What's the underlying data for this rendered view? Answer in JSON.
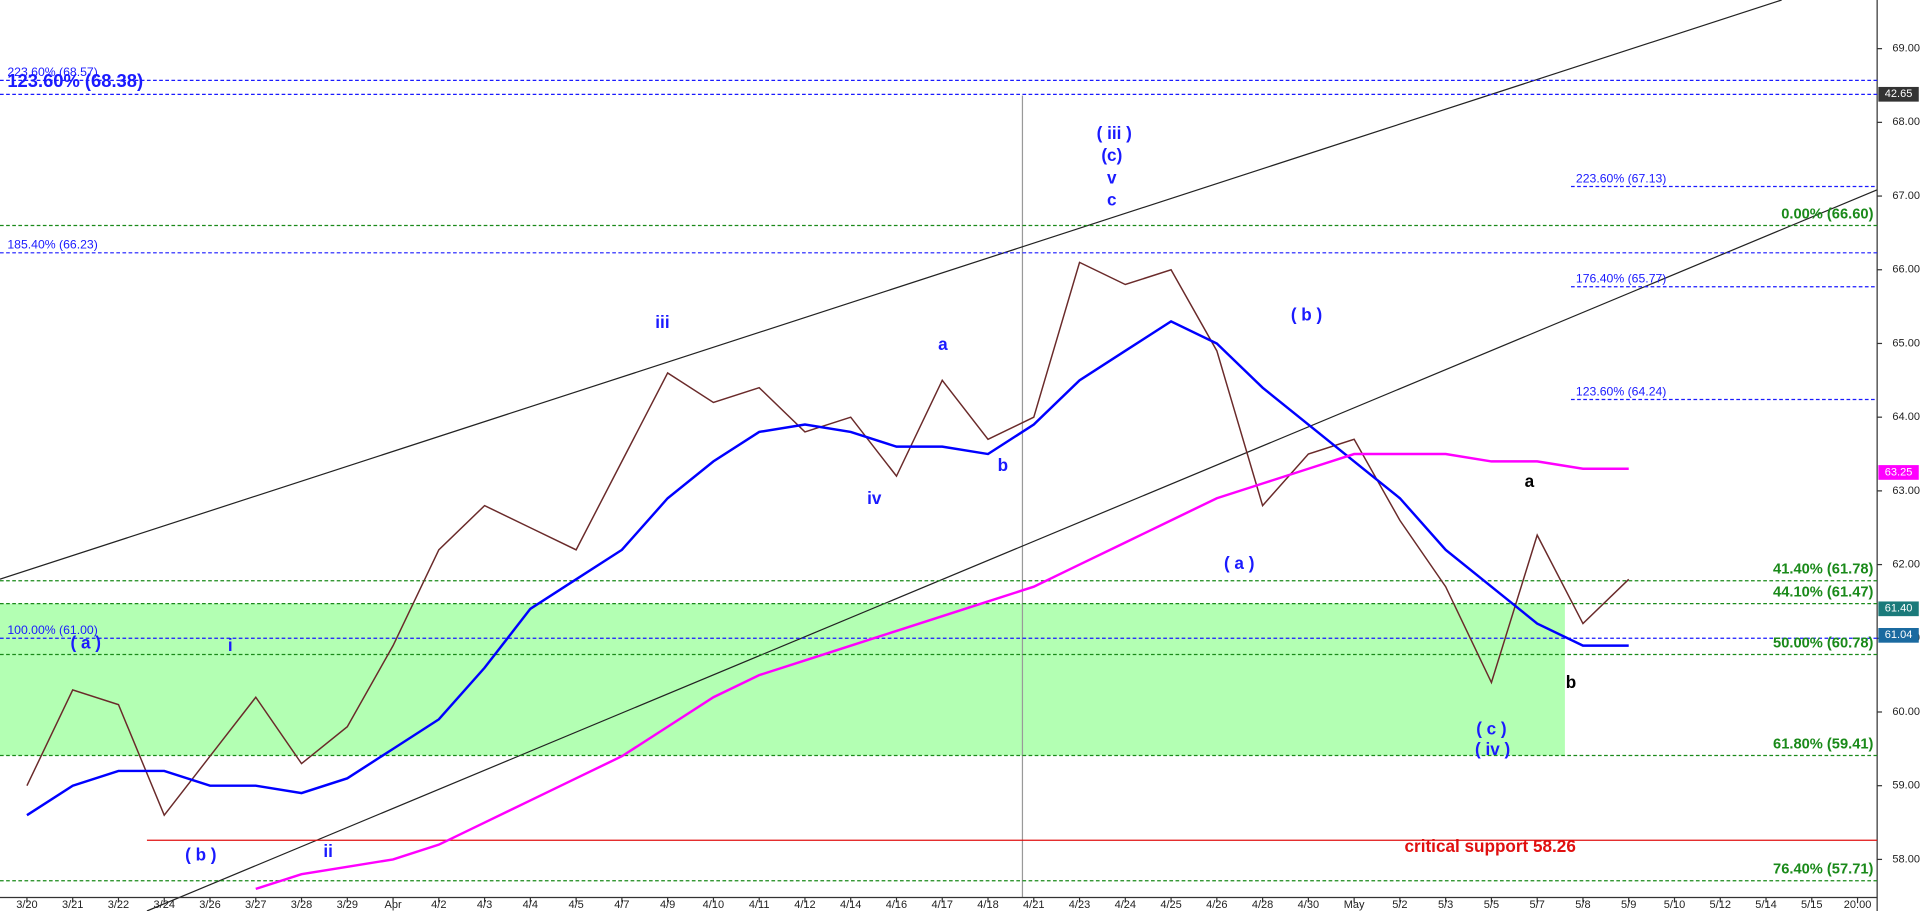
{
  "chart_data": {
    "type": "line",
    "categories": [
      "3/20",
      "3/21",
      "3/22",
      "3/24",
      "3/26",
      "3/27",
      "3/28",
      "3/29",
      "Apr",
      "4/2",
      "4/3",
      "4/4",
      "4/5",
      "4/7",
      "4/9",
      "4/10",
      "4/11",
      "4/12",
      "4/14",
      "4/16",
      "4/17",
      "4/18",
      "4/21",
      "4/23",
      "4/24",
      "4/25",
      "4/26",
      "4/28",
      "4/30",
      "May",
      "5/2",
      "5/3",
      "5/5",
      "5/7",
      "5/8",
      "5/9",
      "5/10",
      "5/12",
      "5/14",
      "5/15",
      "20:00"
    ],
    "series": [
      {
        "color": "#6a2a2a",
        "values": [
          59.0,
          60.3,
          60.1,
          58.6,
          59.4,
          60.2,
          59.3,
          59.8,
          60.9,
          62.2,
          62.8,
          62.5,
          62.2,
          63.4,
          64.6,
          64.2,
          64.4,
          63.8,
          64.0,
          63.2,
          64.5,
          63.7,
          64.0,
          66.1,
          65.8,
          66.0,
          64.9,
          62.8,
          63.5,
          63.7,
          62.6,
          61.7,
          60.4,
          62.4,
          61.2,
          61.8,
          null,
          null,
          null,
          null,
          null
        ]
      },
      {
        "color": "#0000ff",
        "values": [
          58.6,
          59.0,
          59.2,
          59.2,
          59.0,
          59.0,
          58.9,
          59.1,
          59.5,
          59.9,
          60.6,
          61.4,
          61.8,
          62.2,
          62.9,
          63.4,
          63.8,
          63.9,
          63.8,
          63.6,
          63.6,
          63.5,
          63.9,
          64.5,
          64.9,
          65.3,
          65.0,
          64.4,
          63.9,
          63.4,
          62.9,
          62.2,
          61.7,
          61.2,
          60.9,
          60.9,
          null,
          null,
          null,
          null,
          null
        ]
      },
      {
        "color": "#ff00ff",
        "values": [
          null,
          null,
          null,
          null,
          null,
          57.6,
          57.8,
          57.9,
          58.0,
          58.2,
          58.5,
          58.8,
          59.1,
          59.4,
          59.8,
          60.2,
          60.5,
          60.7,
          60.9,
          61.1,
          61.3,
          61.5,
          61.7,
          62.0,
          62.3,
          62.6,
          62.9,
          63.1,
          63.3,
          63.5,
          63.5,
          63.5,
          63.4,
          63.4,
          63.3,
          63.3,
          null,
          null,
          null,
          null,
          null
        ]
      }
    ],
    "ylim": [
      57.3,
      69.66
    ],
    "yticks": [
      {
        "value": 58,
        "label": "58.00"
      },
      {
        "value": 59,
        "label": "59.00"
      },
      {
        "value": 60,
        "label": "60.00"
      },
      {
        "value": 61,
        "label": "61.00"
      },
      {
        "value": 62,
        "label": "62.00"
      },
      {
        "value": 63,
        "label": "63.00"
      },
      {
        "value": 64,
        "label": "64.00"
      },
      {
        "value": 65,
        "label": "65.00"
      },
      {
        "value": 66,
        "label": "66.00"
      },
      {
        "value": 67,
        "label": "67.00"
      },
      {
        "value": 68,
        "label": "68.00"
      },
      {
        "value": 69,
        "label": "69.00"
      }
    ],
    "levels": [
      {
        "label": "223.60% (68.57)",
        "value": 68.57,
        "color": "#1a1aff",
        "side": "left"
      },
      {
        "label": "123.60% (68.38)",
        "value": 68.38,
        "color": "#1a1aff",
        "side": "left-big"
      },
      {
        "label": "185.40% (66.23)",
        "value": 66.23,
        "color": "#1a1aff",
        "side": "left"
      },
      {
        "label": "100.00% (61.00)",
        "value": 61.0,
        "color": "#1a1aff",
        "side": "left"
      },
      {
        "label": "223.60% (67.13)",
        "value": 67.13,
        "color": "#1a1aff",
        "side": "right"
      },
      {
        "label": "176.40% (65.77)",
        "value": 65.77,
        "color": "#1a1aff",
        "side": "right"
      },
      {
        "label": "123.60% (64.24)",
        "value": 64.24,
        "color": "#1a1aff",
        "side": "right"
      },
      {
        "label": "0.00% (66.60)",
        "value": 66.6,
        "color": "#1a8a1a",
        "side": "end"
      },
      {
        "label": "41.40% (61.78)",
        "value": 61.78,
        "color": "#1a8a1a",
        "side": "end"
      },
      {
        "label": "44.10% (61.47)",
        "value": 61.47,
        "color": "#1a8a1a",
        "side": "end"
      },
      {
        "label": "50.00% (60.78)",
        "value": 60.78,
        "color": "#1a8a1a",
        "side": "end"
      },
      {
        "label": "61.80% (59.41)",
        "value": 59.41,
        "color": "#1a8a1a",
        "side": "end"
      },
      {
        "label": "76.40% (57.71)",
        "value": 57.71,
        "color": "#1a8a1a",
        "side": "end"
      },
      {
        "label": "critical support 58.26",
        "value": 58.26,
        "color": "#e01010",
        "side": "red"
      }
    ],
    "zone": {
      "top": 61.47,
      "bottom": 59.41,
      "color": "#b3ffb3"
    },
    "badges": [
      {
        "label": "42.65",
        "color": "#333333"
      },
      {
        "value": 63.25,
        "label": "63.25",
        "color": "#ff00ff"
      },
      {
        "value": 61.4,
        "label": "61.40",
        "color": "#1a7a7a"
      },
      {
        "value": 61.04,
        "label": "61.04",
        "color": "#1a6aa0"
      }
    ],
    "annotations": [
      {
        "text": "( iii )",
        "color": "#1a1aff"
      },
      {
        "text": "(c)",
        "color": "#1a1aff"
      },
      {
        "text": "v",
        "color": "#1a1aff"
      },
      {
        "text": "c",
        "color": "#1a1aff"
      },
      {
        "text": "iii",
        "color": "#1a1aff"
      },
      {
        "text": "a",
        "color": "#1a1aff"
      },
      {
        "text": "b",
        "color": "#1a1aff"
      },
      {
        "text": "iv",
        "color": "#1a1aff"
      },
      {
        "text": "( b )",
        "color": "#1a1aff"
      },
      {
        "text": "( a )",
        "color": "#1a1aff"
      },
      {
        "text": "i",
        "color": "#1a1aff"
      },
      {
        "text": "( a )",
        "color": "#1a1aff"
      },
      {
        "text": "( b )",
        "color": "#1a1aff"
      },
      {
        "text": "ii",
        "color": "#1a1aff"
      },
      {
        "text": "a",
        "color": "#000000"
      },
      {
        "text": "b",
        "color": "#000000"
      },
      {
        "text": "( c )",
        "color": "#1a1aff"
      },
      {
        "text": "( iv )",
        "color": "#1a1aff"
      }
    ]
  }
}
